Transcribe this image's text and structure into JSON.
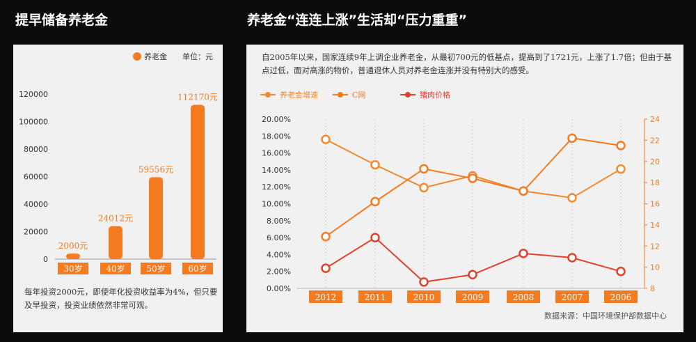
{
  "left_title": "提早储备养老金",
  "right_title": "养老金“连连上涨”生活却“压力重重”",
  "left_description": "每年投资2000元，即使年化投资收益率为4%，但只要及早投资，投资业绩依然非常可观。",
  "right_description": "自2005年以来，国家连续9年上调企业养老金，从最初700元的低基点，提高到了1721元，上涨了1.7倍；但由于基点过低，面对高涨的物价，普通退休人员对养老金连涨并没有特别大的感受。",
  "source": "数据来源：中国环境保护部数据中心",
  "colors": {
    "orange": "#f47b20",
    "red": "#e2402a",
    "orange_line": "#f08a30"
  },
  "chart_data": [
    {
      "type": "bar",
      "legend": [
        "养老金"
      ],
      "unit_label": "单位：元",
      "categories": [
        "30岁",
        "40岁",
        "50岁",
        "60岁"
      ],
      "values": [
        2000,
        24012,
        59556,
        112170
      ],
      "value_labels": [
        "2000元",
        "24012元",
        "59556元",
        "112170元"
      ],
      "ylim": [
        0,
        120000
      ],
      "yticks": [
        "0",
        "20000",
        "40000",
        "60000",
        "80000",
        "100000",
        "120000"
      ],
      "grid": false
    },
    {
      "type": "line",
      "categories": [
        "2012",
        "2011",
        "2010",
        "2009",
        "2008",
        "2007",
        "2006"
      ],
      "legend": [
        "养老金增速",
        "C网",
        "猪肉价格"
      ],
      "left_axis": {
        "ylim": [
          0,
          20
        ],
        "ticks": [
          "0.00%",
          "2.00%",
          "4.00%",
          "6.00%",
          "8.00%",
          "10.00%",
          "12.00%",
          "14.00%",
          "16.00%",
          "18.00%",
          "20.00%"
        ]
      },
      "right_axis": {
        "ylim": [
          8,
          24
        ],
        "ticks": [
          "8",
          "10",
          "12",
          "14",
          "16",
          "18",
          "20",
          "22",
          "24"
        ]
      },
      "series": [
        {
          "name": "养老金增速",
          "axis": "left",
          "values": [
            17.6,
            14.6,
            11.9,
            13.3,
            11.5,
            10.7,
            14.1
          ]
        },
        {
          "name": "C网",
          "axis": "right",
          "values": [
            12.9,
            16.2,
            19.3,
            18.4,
            17.2,
            22.2,
            21.5
          ]
        },
        {
          "name": "猪肉价格",
          "axis": "right",
          "values": [
            9.9,
            12.8,
            8.6,
            9.3,
            11.3,
            10.9,
            9.6
          ]
        }
      ],
      "legend_placement": "top",
      "grid": "vertical"
    }
  ]
}
